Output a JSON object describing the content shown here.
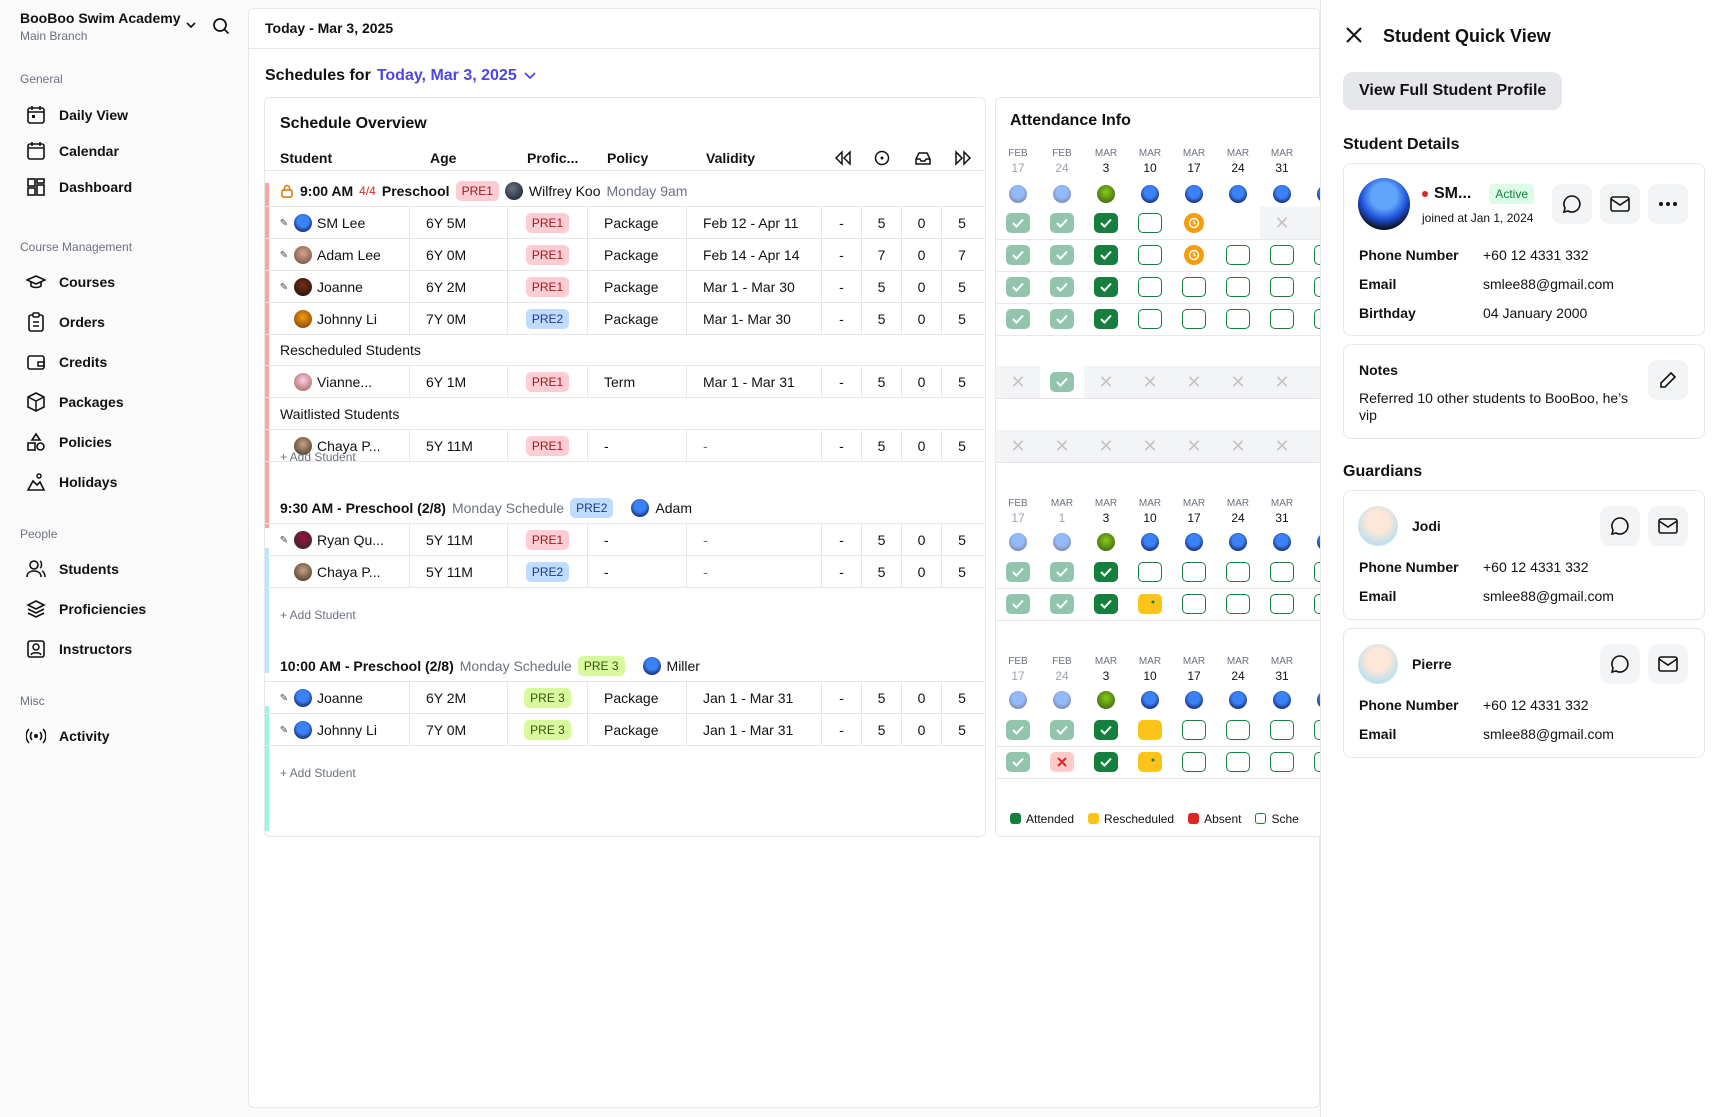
{
  "sidebar": {
    "brand": "BooBoo Swim Academy",
    "branch": "Main Branch",
    "groups": {
      "general": "General",
      "course": "Course Management",
      "people": "People",
      "misc": "Misc"
    },
    "items": {
      "daily": "Daily View",
      "calendar": "Calendar",
      "dashboard": "Dashboard",
      "courses": "Courses",
      "orders": "Orders",
      "credits": "Credits",
      "packages": "Packages",
      "policies": "Policies",
      "holidays": "Holidays",
      "students": "Students",
      "proficiencies": "Proficiencies",
      "instructors": "Instructors",
      "activity": "Activity"
    }
  },
  "topbar": {
    "date": "Today - Mar 3, 2025"
  },
  "schedules": {
    "prefix": "Schedules for",
    "date": "Today, Mar 3, 2025"
  },
  "overview": {
    "title": "Schedule Overview",
    "cols": {
      "student": "Student",
      "age": "Age",
      "prof": "Profic...",
      "policy": "Policy",
      "validity": "Validity"
    },
    "add_student": "+ Add Student",
    "rescheduled": "Rescheduled Students",
    "waitlisted": "Waitlisted Students",
    "g1": {
      "time": "9:00 AM",
      "count": "4/4",
      "course": "Preschool",
      "badge": "PRE1",
      "instructor": "Wilfrey Koo",
      "sub": "Monday 9am"
    },
    "g2": {
      "time": "9:30 AM - Preschool (2/8)",
      "sub": "Monday Schedule",
      "badge": "PRE2",
      "instructor": "Adam"
    },
    "g3": {
      "time": "10:00 AM - Preschool (2/8)",
      "sub": "Monday Schedule",
      "badge": "PRE 3",
      "instructor": "Miller"
    },
    "rows": [
      {
        "name": "SM Lee",
        "age": "6Y 5M",
        "prof": "PRE1",
        "policy": "Package",
        "validity": "Feb 12 - Apr 11",
        "a": "-",
        "b": "5",
        "c": "0",
        "d": "5"
      },
      {
        "name": "Adam Lee",
        "age": "6Y 0M",
        "prof": "PRE1",
        "policy": "Package",
        "validity": "Feb 14 - Apr 14",
        "a": "-",
        "b": "7",
        "c": "0",
        "d": "7"
      },
      {
        "name": "Joanne",
        "age": "6Y 2M",
        "prof": "PRE1",
        "policy": "Package",
        "validity": "Mar 1 - Mar 30",
        "a": "-",
        "b": "5",
        "c": "0",
        "d": "5"
      },
      {
        "name": "Johnny Li",
        "age": "7Y 0M",
        "prof": "PRE2",
        "policy": "Package",
        "validity": "Mar 1- Mar 30",
        "a": "-",
        "b": "5",
        "c": "0",
        "d": "5"
      },
      {
        "name": "Vianne...",
        "age": "6Y 1M",
        "prof": "PRE1",
        "policy": "Term",
        "validity": "Mar 1 - Mar 31",
        "a": "-",
        "b": "5",
        "c": "0",
        "d": "5"
      },
      {
        "name": "Chaya P...",
        "age": "5Y 11M",
        "prof": "PRE1",
        "policy": "-",
        "validity": "-",
        "a": "-",
        "b": "5",
        "c": "0",
        "d": "5"
      },
      {
        "name": "Ryan Qu...",
        "age": "5Y 11M",
        "prof": "PRE1",
        "policy": "-",
        "validity": "-",
        "a": "-",
        "b": "5",
        "c": "0",
        "d": "5"
      },
      {
        "name": "Chaya P...",
        "age": "5Y 11M",
        "prof": "PRE2",
        "policy": "-",
        "validity": "-",
        "a": "-",
        "b": "5",
        "c": "0",
        "d": "5"
      },
      {
        "name": "Joanne",
        "age": "6Y 2M",
        "prof": "PRE 3",
        "policy": "Package",
        "validity": "Jan 1 - Mar 31",
        "a": "-",
        "b": "5",
        "c": "0",
        "d": "5"
      },
      {
        "name": "Johnny Li",
        "age": "7Y 0M",
        "prof": "PRE 3",
        "policy": "Package",
        "validity": "Jan 1 - Mar 31",
        "a": "-",
        "b": "5",
        "c": "0",
        "d": "5"
      }
    ]
  },
  "attendance": {
    "title": "Attendance Info",
    "dates1": [
      [
        "FEB",
        "17"
      ],
      [
        "FEB",
        "24"
      ],
      [
        "MAR",
        "3"
      ],
      [
        "MAR",
        "10"
      ],
      [
        "MAR",
        "17"
      ],
      [
        "MAR",
        "24"
      ],
      [
        "MAR",
        "31"
      ],
      [
        "A",
        ""
      ]
    ],
    "dates2": [
      [
        "FEB",
        "17"
      ],
      [
        "MAR",
        "1"
      ],
      [
        "MAR",
        "3"
      ],
      [
        "MAR",
        "10"
      ],
      [
        "MAR",
        "17"
      ],
      [
        "MAR",
        "24"
      ],
      [
        "MAR",
        "31"
      ],
      [
        "A",
        ""
      ]
    ],
    "legend": {
      "attended": "Attended",
      "rescheduled": "Rescheduled",
      "absent": "Absent",
      "scheduled": "Sche"
    },
    "colors": {
      "attended": "#15803d",
      "rescheduled": "#fcc419",
      "absent": "#dc2626",
      "light": "#93c5ae"
    }
  },
  "panel": {
    "title": "Student Quick View",
    "btn": "View Full Student Profile",
    "details_h": "Student Details",
    "student": {
      "name": "SM...",
      "status": "Active",
      "joined": "joined at Jan 1, 2024",
      "phone_k": "Phone Number",
      "phone": "+60 12 4331 332",
      "email_k": "Email",
      "email": "smlee88@gmail.com",
      "bday_k": "Birthday",
      "bday": "04 January 2000"
    },
    "notes": {
      "h": "Notes",
      "text": "Referred 10 other students to BooBoo, he’s vip"
    },
    "guardians_h": "Guardians",
    "g1": {
      "name": "Jodi",
      "phone_k": "Phone Number",
      "phone": "+60 12 4331 332",
      "email_k": "Email",
      "email": "smlee88@gmail.com"
    },
    "g2": {
      "name": "Pierre",
      "phone_k": "Phone Number",
      "phone": "+60 12 4331 332",
      "email_k": "Email",
      "email": "smlee88@gmail.com"
    }
  }
}
